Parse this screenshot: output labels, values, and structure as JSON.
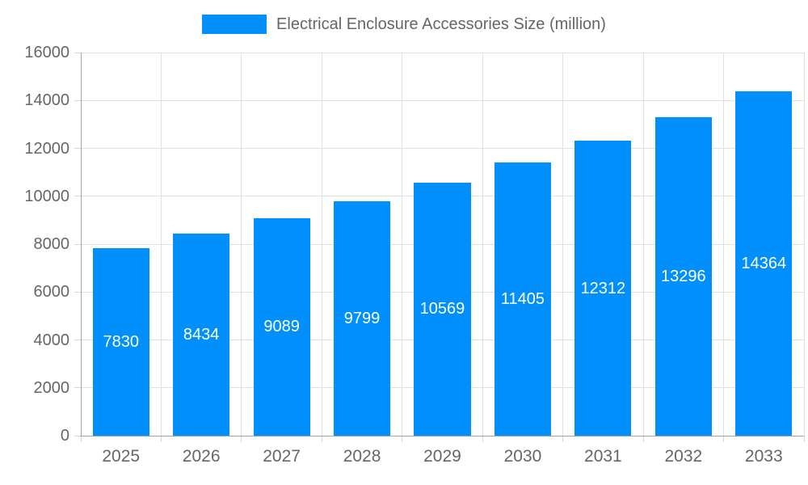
{
  "chart_data": {
    "type": "bar",
    "title": "Electrical Enclosure Accessories Size (million)",
    "series_name": "Electrical Enclosure Accessories Size (million)",
    "categories": [
      "2025",
      "2026",
      "2027",
      "2028",
      "2029",
      "2030",
      "2031",
      "2032",
      "2033"
    ],
    "values": [
      7830,
      8434,
      9089,
      9799,
      10569,
      11405,
      12312,
      13296,
      14364
    ],
    "value_labels": [
      "7830",
      "8434",
      "9089",
      "9799",
      "10569",
      "11405",
      "12312",
      "13296",
      "14364"
    ],
    "xlabel": "",
    "ylabel": "",
    "ylim": [
      0,
      16000
    ],
    "yticks": [
      0,
      2000,
      4000,
      6000,
      8000,
      10000,
      12000,
      14000,
      16000
    ],
    "grid": true,
    "legend_position": "top",
    "colors": {
      "bar": "#008FFB",
      "value_label": "#ffffff",
      "grid": "#e0e0e0",
      "tick": "#d6d6d6",
      "axis": "#a3a3a3",
      "text": "#666666"
    }
  }
}
